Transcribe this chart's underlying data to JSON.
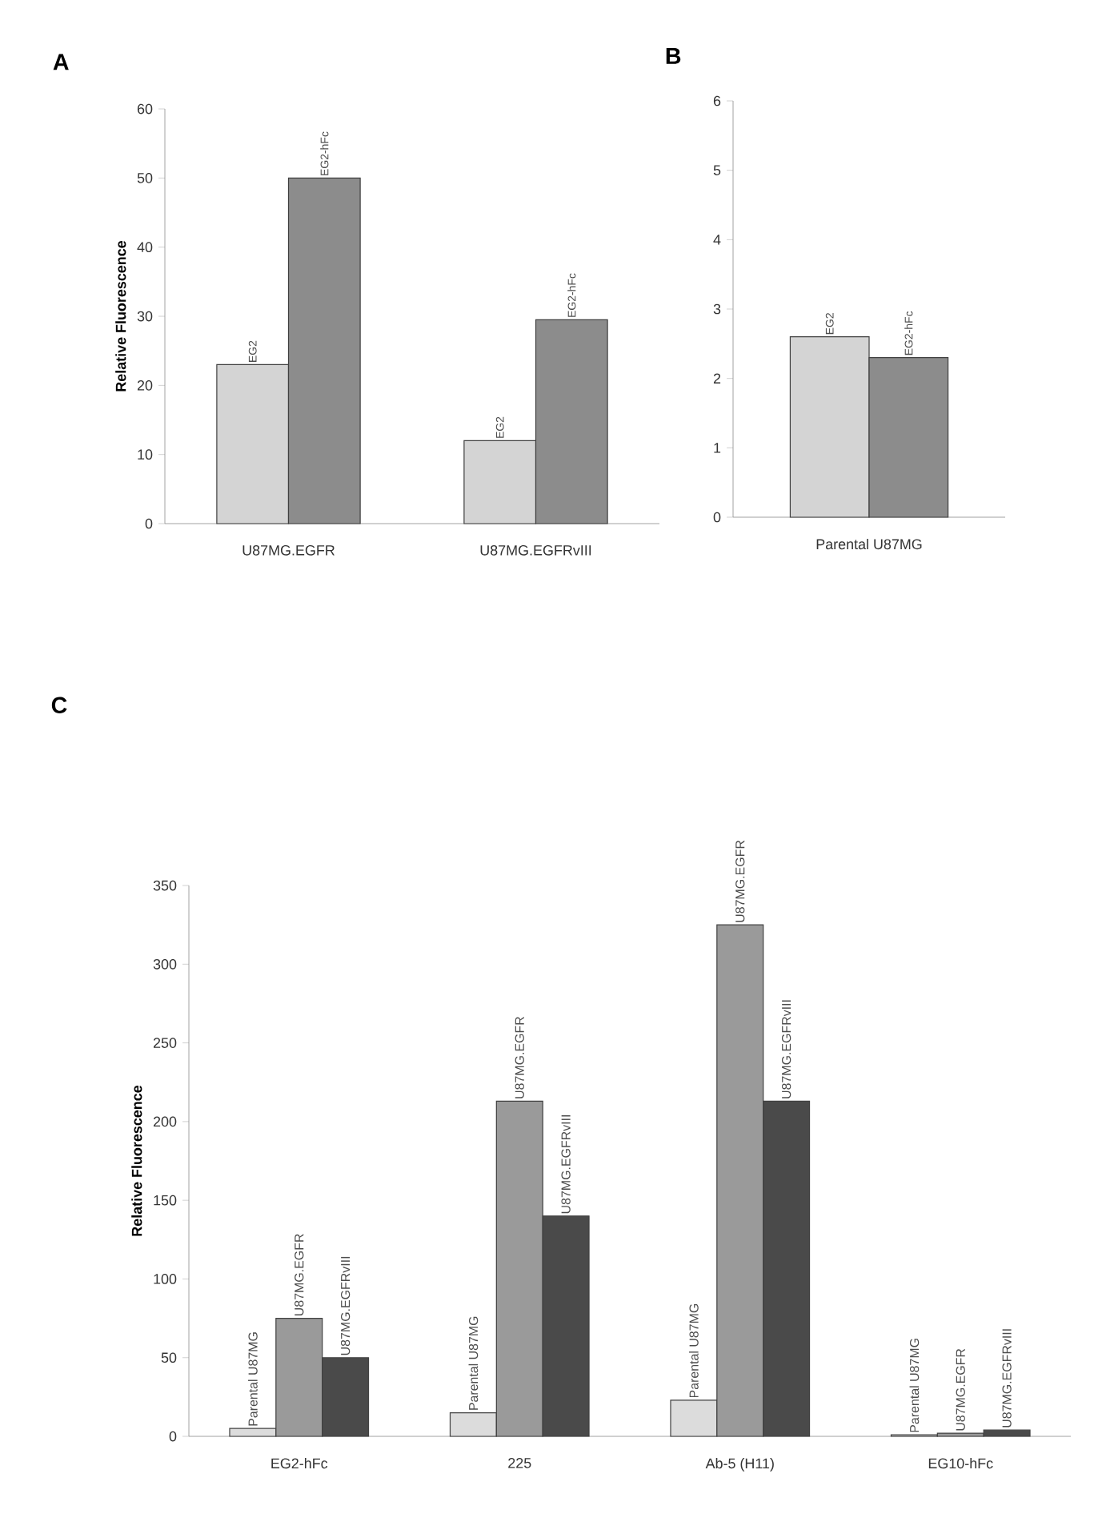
{
  "chart_data": [
    {
      "type": "bar",
      "title": "A",
      "ylabel": "Relative Fluorescence",
      "categories": [
        "U87MG.EGFR",
        "U87MG.EGFRvIII"
      ],
      "ylim": [
        0,
        60
      ],
      "yticks": [
        0,
        10,
        20,
        30,
        40,
        50,
        60
      ],
      "series": [
        {
          "name": "EG2",
          "color": "#d4d4d4",
          "values": [
            23,
            12
          ]
        },
        {
          "name": "EG2-hFc",
          "color": "#8c8c8c",
          "values": [
            50,
            29.5
          ]
        }
      ]
    },
    {
      "type": "bar",
      "title": "B",
      "categories": [
        "Parental U87MG"
      ],
      "ylim": [
        0,
        6
      ],
      "yticks": [
        0,
        1,
        2,
        3,
        4,
        5,
        6
      ],
      "series": [
        {
          "name": "EG2",
          "color": "#d4d4d4",
          "values": [
            2.6
          ]
        },
        {
          "name": "EG2-hFc",
          "color": "#8c8c8c",
          "values": [
            2.3
          ]
        }
      ]
    },
    {
      "type": "bar",
      "title": "C",
      "ylabel": "Relative Fluorescence",
      "categories": [
        "EG2-hFc",
        "225",
        "Ab-5 (H11)",
        "EG10-hFc"
      ],
      "ylim": [
        0,
        350
      ],
      "yticks": [
        0,
        50,
        100,
        150,
        200,
        250,
        300,
        350
      ],
      "series": [
        {
          "name": "Parental U87MG",
          "color": "#dcdcdc",
          "values": [
            5,
            15,
            23,
            1
          ]
        },
        {
          "name": "U87MG.EGFR",
          "color": "#9a9a9a",
          "values": [
            75,
            213,
            325,
            2
          ]
        },
        {
          "name": "U87MG.EGFRvIII",
          "color": "#4a4a4a",
          "values": [
            50,
            140,
            213,
            4
          ]
        }
      ]
    }
  ]
}
